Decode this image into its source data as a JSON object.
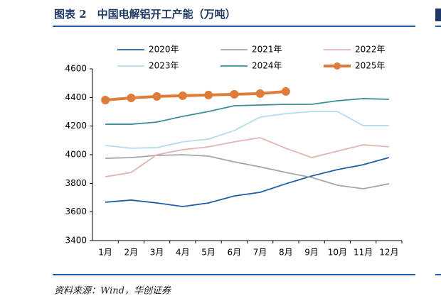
{
  "chart_data": {
    "type": "line",
    "title": "图表 2　中国电解铝开工产能（万吨）",
    "source": "资料来源：Wind，华创证券",
    "categories": [
      "1月",
      "2月",
      "3月",
      "4月",
      "5月",
      "6月",
      "7月",
      "8月",
      "9月",
      "10月",
      "11月",
      "12月"
    ],
    "series": [
      {
        "name": "2020年",
        "color": "#1f5fa8",
        "values": [
          3668,
          3683,
          3663,
          3638,
          3663,
          3712,
          3737,
          3797,
          3851,
          3896,
          3930,
          3980
        ]
      },
      {
        "name": "2021年",
        "color": "#a6a6a6",
        "values": [
          3975,
          3980,
          3995,
          4000,
          3990,
          3950,
          3915,
          3876,
          3841,
          3787,
          3762,
          3797
        ]
      },
      {
        "name": "2022年",
        "color": "#e6b3b3",
        "values": [
          3846,
          3876,
          4000,
          4035,
          4055,
          4090,
          4119,
          4045,
          3980,
          4025,
          4069,
          4055
        ]
      },
      {
        "name": "2023年",
        "color": "#b5dcec",
        "values": [
          4065,
          4045,
          4050,
          4090,
          4109,
          4169,
          4263,
          4287,
          4302,
          4302,
          4203,
          4203
        ]
      },
      {
        "name": "2024年",
        "color": "#3b8e9c",
        "values": [
          4213,
          4213,
          4228,
          4268,
          4302,
          4342,
          4347,
          4352,
          4352,
          4377,
          4392,
          4387
        ]
      },
      {
        "name": "2025年",
        "color": "#e07b39",
        "markers": true,
        "values": [
          4382,
          4397,
          4407,
          4412,
          4417,
          4422,
          4427,
          4442,
          null,
          null,
          null,
          null
        ]
      }
    ],
    "ylim": [
      3400,
      4600
    ],
    "yticks": [
      3400,
      3600,
      3800,
      4000,
      4200,
      4400,
      4600
    ]
  }
}
